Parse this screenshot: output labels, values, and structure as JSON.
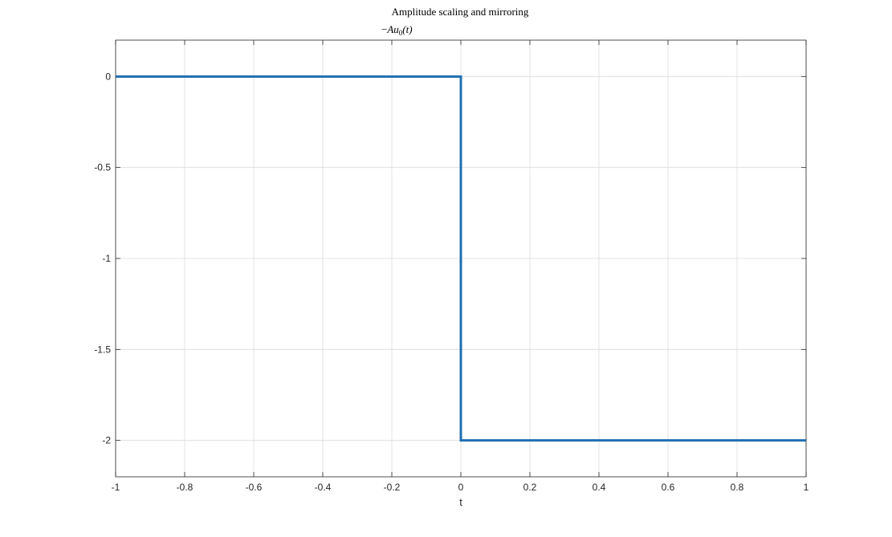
{
  "chart_data": {
    "type": "line",
    "title": "Amplitude scaling and mirroring",
    "subtitle": {
      "prefix": "−",
      "a": "A",
      "u": "u",
      "sub": "0",
      "paren": "(t)"
    },
    "xlabel": "t",
    "ylabel": "",
    "xlim": [
      -1,
      1
    ],
    "ylim": [
      -2.2,
      0.2
    ],
    "xticks": [
      -1,
      -0.8,
      -0.6,
      -0.4,
      -0.2,
      0,
      0.2,
      0.4,
      0.6,
      0.8,
      1
    ],
    "xtick_labels": [
      "-1",
      "-0.8",
      "-0.6",
      "-0.4",
      "-0.2",
      "0",
      "0.2",
      "0.4",
      "0.6",
      "0.8",
      "1"
    ],
    "yticks": [
      0,
      -0.5,
      -1,
      -1.5,
      -2
    ],
    "ytick_labels": [
      "0",
      "-0.5",
      "-1",
      "-1.5",
      "-2"
    ],
    "grid": true,
    "series": [
      {
        "color": "#1f6fb2",
        "x": [
          -1,
          0,
          0,
          1
        ],
        "y": [
          0,
          0,
          -2,
          -2
        ]
      }
    ]
  }
}
